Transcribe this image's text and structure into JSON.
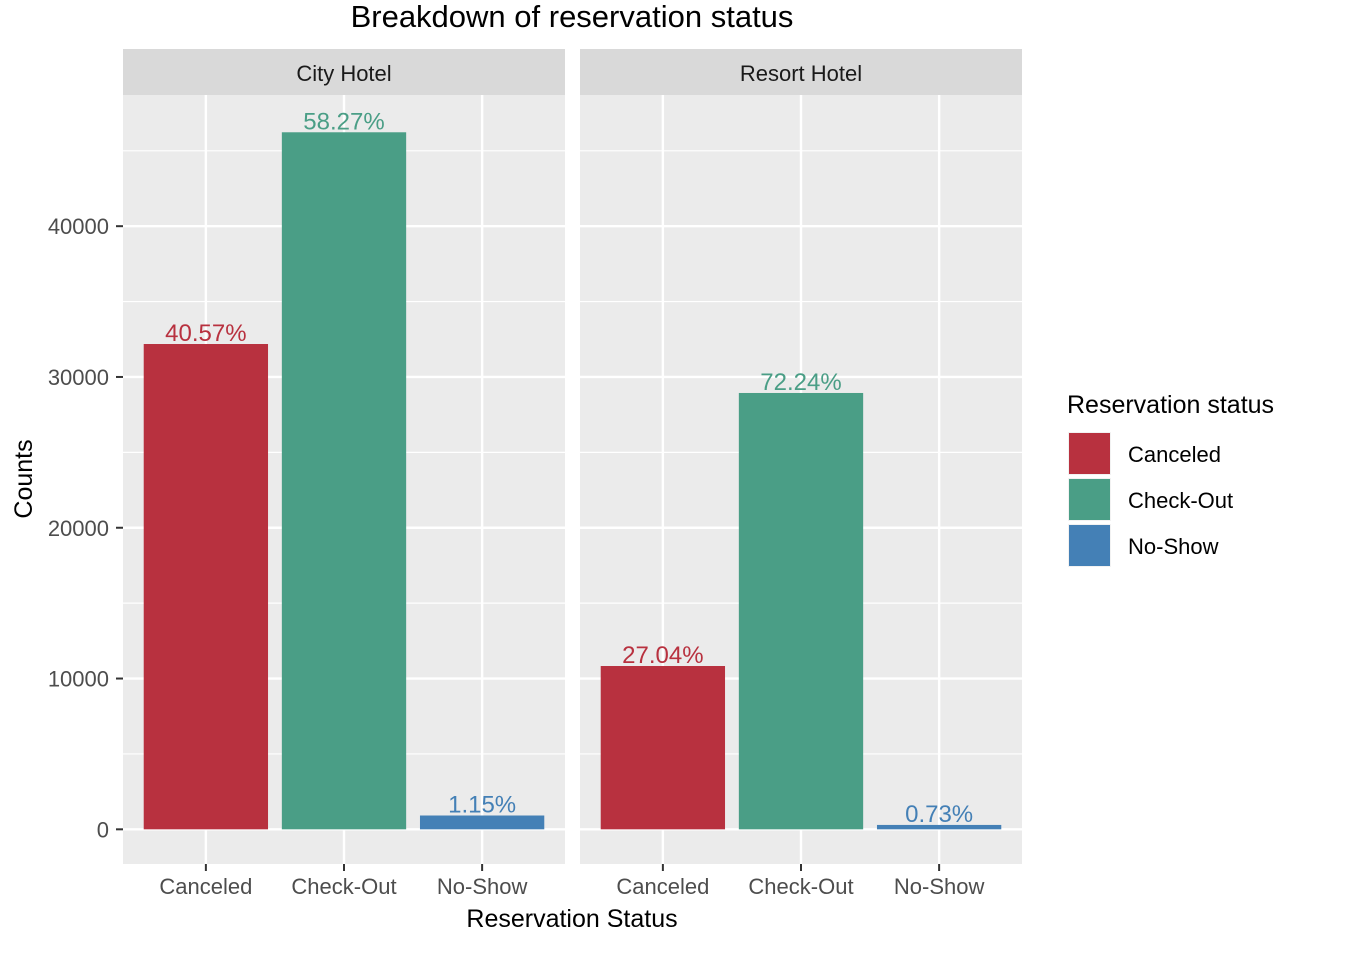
{
  "chart_data": {
    "type": "bar",
    "title": "Breakdown of reservation status",
    "xlabel": "Reservation Status",
    "ylabel": "Counts",
    "ylim": [
      -2300,
      48700
    ],
    "yticks": [
      0,
      10000,
      20000,
      30000,
      40000
    ],
    "ytick_labels": [
      "0",
      "10000",
      "20000",
      "30000",
      "40000"
    ],
    "categories": [
      "Canceled",
      "Check-Out",
      "No-Show"
    ],
    "grid": true,
    "facets": [
      {
        "name": "City Hotel",
        "values": [
          32186,
          46228,
          916
        ],
        "labels": [
          "40.57%",
          "58.27%",
          "1.15%"
        ]
      },
      {
        "name": "Resort Hotel",
        "values": [
          10831,
          28938,
          291
        ],
        "labels": [
          "27.04%",
          "72.24%",
          "0.73%"
        ]
      }
    ],
    "legend": {
      "title": "Reservation status",
      "position": "right",
      "items": [
        "Canceled",
        "Check-Out",
        "No-Show"
      ]
    },
    "colors": {
      "Canceled": "#B8313F",
      "Check-Out": "#4A9E86",
      "No-Show": "#4480B6",
      "panel_background": "#EBEBEB",
      "strip_background": "#D9D9D9",
      "gridline": "#FFFFFF"
    }
  }
}
